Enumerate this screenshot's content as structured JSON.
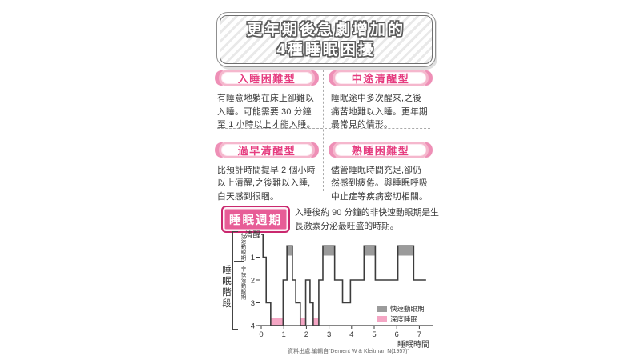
{
  "title_banner": {
    "line1": "更年期後急劇增加的",
    "line2": "4種睡眠困擾"
  },
  "sleep_problem_types": [
    {
      "heading": "入睡困難型",
      "description": "有睡意地躺在床上卻難以入睡。可能需要 30 分鐘至 1 小時以上才能入睡。"
    },
    {
      "heading": "中途清醒型",
      "description": "睡眠途中多次醒來,之後痛苦地難以入睡。更年期最常見的情形。"
    },
    {
      "heading": "過早清醒型",
      "description": "比預計時間提早 2 個小時以上清醒,之後難以入睡,白天感到很睏。"
    },
    {
      "heading": "熟睡困難型",
      "description": "儘管睡眠時間充足,卻仍然感到疲倦。與睡眠呼吸中止症等疾病密切相關。"
    }
  ],
  "sleep_cycle_section": {
    "badge_label": "睡眠週期",
    "caption": "入睡後約 90 分鐘的非快速動眼期是生長激素分泌最旺盛的時期。"
  },
  "chart_data": {
    "type": "line",
    "subtype": "hypnogram_step",
    "x_label": "睡眠時間",
    "y_label": "睡眠階段",
    "y_tick_labels": [
      "清醒",
      "1",
      "2",
      "3",
      "4"
    ],
    "x_tick_labels": [
      "0",
      "1",
      "2",
      "3",
      "4",
      "5",
      "6",
      "7"
    ],
    "x_range_hours": [
      0,
      7
    ],
    "y_axis_band_labels": {
      "rem": "快速動眼期",
      "non_rem": "非快速動眼期"
    },
    "stage_segments_hours_level": [
      [
        0,
        0.08,
        0
      ],
      [
        0.08,
        0.22,
        1
      ],
      [
        0.22,
        0.42,
        3
      ],
      [
        0.42,
        0.97,
        4
      ],
      [
        0.97,
        1.14,
        2
      ],
      [
        1.14,
        1.38,
        0.5
      ],
      [
        1.38,
        1.53,
        2
      ],
      [
        1.53,
        1.73,
        3
      ],
      [
        1.73,
        1.97,
        4
      ],
      [
        1.97,
        2.16,
        2
      ],
      [
        2.16,
        2.3,
        3
      ],
      [
        2.3,
        2.55,
        4
      ],
      [
        2.55,
        2.73,
        2
      ],
      [
        2.73,
        3.25,
        0.5
      ],
      [
        3.25,
        3.6,
        2
      ],
      [
        3.6,
        3.95,
        3
      ],
      [
        3.95,
        4.55,
        2
      ],
      [
        4.55,
        5.05,
        0.5
      ],
      [
        5.05,
        6.05,
        2
      ],
      [
        6.05,
        6.75,
        0.5
      ],
      [
        6.75,
        7.3,
        2
      ]
    ],
    "rem_periods_hours": [
      [
        1.14,
        1.38
      ],
      [
        2.73,
        3.25
      ],
      [
        4.55,
        5.05
      ],
      [
        6.05,
        6.75
      ]
    ],
    "deep_sleep_periods_hours": [
      [
        0.42,
        0.97
      ],
      [
        1.73,
        1.97
      ],
      [
        2.3,
        2.55
      ]
    ],
    "legend": [
      {
        "label": "快速動眼期",
        "color": "#9b9b9b"
      },
      {
        "label": "深度睡眠",
        "color": "#f4a6c4"
      }
    ],
    "line_color": "#3c3c3c",
    "source": "資料出處:編輯自“Dement W & Kleitman N(1957)”"
  }
}
